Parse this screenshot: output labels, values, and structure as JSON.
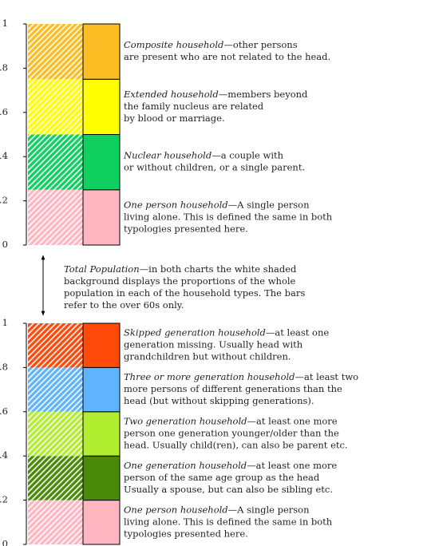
{
  "chart_data": [
    {
      "type": "bar",
      "stacked": true,
      "categories": [
        null,
        null
      ],
      "ylim": [
        0,
        1
      ],
      "yticks": [
        {
          "value": 0,
          "label": "0"
        },
        {
          "value": 0.2,
          "label": ".2"
        },
        {
          "value": 0.4,
          "label": ".4"
        },
        {
          "value": 0.6,
          "label": ".6"
        },
        {
          "value": 0.8,
          "label": ".8"
        },
        {
          "value": 1,
          "label": "1"
        }
      ],
      "series": [
        {
          "name": "One person household",
          "color": "#ffb6c1",
          "values": [
            0.25,
            0.25
          ],
          "description": [
            "—A single person",
            "living alone.  This is defined the same in both",
            "typologies presented here."
          ]
        },
        {
          "name": "Nuclear household",
          "color": "#0fcf60",
          "values": [
            0.25,
            0.25
          ],
          "description": [
            "—a couple with",
            "or without children, or a single parent."
          ]
        },
        {
          "name": "Extended household",
          "color": "#ffff00",
          "values": [
            0.25,
            0.25
          ],
          "description": [
            "—members beyond",
            "the family nucleus are related",
            "by blood or marriage."
          ]
        },
        {
          "name": "Composite household",
          "color": "#fbbd24",
          "values": [
            0.25,
            0.25
          ],
          "description": [
            "—other persons",
            "are present who are not related to the head."
          ]
        }
      ]
    },
    {
      "type": "bar",
      "stacked": true,
      "categories": [
        null,
        null
      ],
      "ylim": [
        0,
        1
      ],
      "yticks": [
        {
          "value": 0,
          "label": "0"
        },
        {
          "value": 0.2,
          "label": ".2"
        },
        {
          "value": 0.4,
          "label": ".4"
        },
        {
          "value": 0.6,
          "label": ".6"
        },
        {
          "value": 0.8,
          "label": ".8"
        },
        {
          "value": 1,
          "label": "1"
        }
      ],
      "series": [
        {
          "name": "One person household",
          "color": "#ffb6c1",
          "values": [
            0.2,
            0.2
          ],
          "description": [
            "—A single person",
            "living alone.  This is defined the same in both",
            "typologies presented here."
          ]
        },
        {
          "name": "One generation household",
          "color": "#4a8a08",
          "values": [
            0.2,
            0.2
          ],
          "description": [
            "—at least one more",
            "person of the same age group as the head",
            "Usually a spouse, but can also be sibling etc."
          ]
        },
        {
          "name": "Two generation household",
          "color": "#b2ee30",
          "values": [
            0.2,
            0.2
          ],
          "description": [
            "—at least one more",
            "person one generation younger/older than the",
            "head. Usually child(ren), can also be parent etc."
          ]
        },
        {
          "name": "Three or more generation household",
          "color": "#60b4ff",
          "values": [
            0.2,
            0.2
          ],
          "description": [
            "—at least two",
            "more persons of different generations than the",
            "head (but without skipping generations)."
          ]
        },
        {
          "name": "Skipped generation household",
          "color": "#ff4a0a",
          "values": [
            0.2,
            0.2
          ],
          "description": [
            "—at least one",
            "generation missing.  Usually head with",
            "grandchildren but without children."
          ]
        }
      ]
    }
  ],
  "annotation": {
    "title": "Total Population",
    "lines": [
      "—in both charts the white shaded",
      "background displays the proportions of the whole",
      "population in each of the household types.  The bars",
      "refer to the over 60s only."
    ]
  }
}
